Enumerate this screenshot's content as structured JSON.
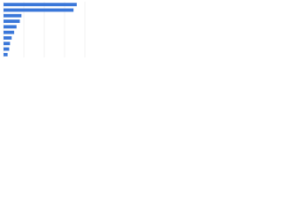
{
  "chart_data": {
    "type": "bar",
    "orientation": "horizontal",
    "categories": [
      null,
      null,
      null,
      null,
      null,
      null,
      null,
      null,
      null,
      null
    ],
    "values": [
      90,
      86,
      22,
      20,
      16,
      13,
      10,
      8,
      7,
      5
    ],
    "color": "#3a77d9",
    "xlim": [
      0,
      100
    ],
    "xticks": [
      0,
      25,
      50,
      75,
      100
    ],
    "grid": true
  }
}
